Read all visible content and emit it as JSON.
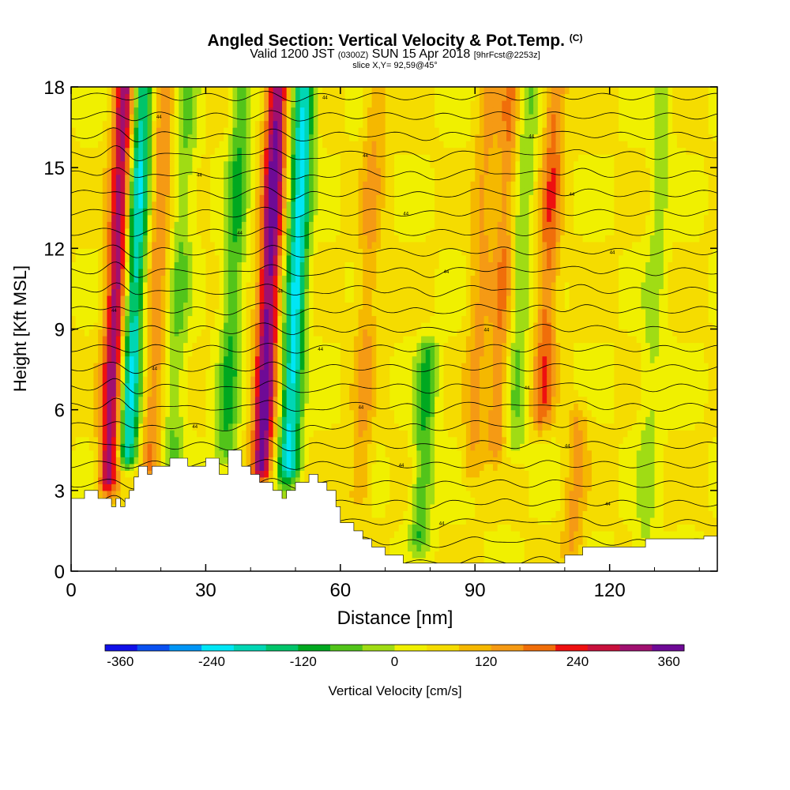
{
  "header": {
    "title": "Angled Section: Vertical Velocity & Pot.Temp.",
    "title_suffix": "(C)",
    "valid_prefix": "Valid 1200 JST",
    "valid_z": "(0300Z)",
    "valid_date": "SUN 15 Apr 2018",
    "valid_fcst": "[9hrFcst@2253z]",
    "slice": "slice X,Y= 92,59@45°"
  },
  "chart_data": {
    "type": "heatmap",
    "xlabel": "Distance [nm]",
    "ylabel": "Height [Kft MSL]",
    "xlim": [
      0,
      144
    ],
    "ylim": [
      0,
      18
    ],
    "x_ticks": [
      "0",
      "30",
      "60",
      "90",
      "120"
    ],
    "y_ticks": [
      "0",
      "3",
      "6",
      "9",
      "12",
      "15",
      "18"
    ],
    "colorbar": {
      "label": "Vertical Velocity [cm/s]",
      "tick_labels": [
        "-360",
        "-240",
        "-120",
        "0",
        "120",
        "240",
        "360"
      ],
      "tick_values": [
        -360,
        -240,
        -120,
        0,
        120,
        240,
        360
      ],
      "range": [
        -380,
        380
      ],
      "colors": [
        "#1010e8",
        "#0a50f0",
        "#0095f5",
        "#00e6f5",
        "#00d6b4",
        "#00c46a",
        "#00a820",
        "#52c41a",
        "#a0dc14",
        "#f0f000",
        "#f5dc00",
        "#f5b800",
        "#f59a14",
        "#f06e0a",
        "#ee1010",
        "#c8103c",
        "#a01070",
        "#6e0a96"
      ]
    },
    "vertical_velocity_features": [
      {
        "x": 10,
        "ymin": 3.5,
        "ymax": 18,
        "value": 280
      },
      {
        "x": 14,
        "ymin": 4.5,
        "ymax": 18,
        "value": -260
      },
      {
        "x": 19,
        "ymin": 4,
        "ymax": 18,
        "value": 120
      },
      {
        "x": 24,
        "ymin": 4,
        "ymax": 18,
        "value": -90
      },
      {
        "x": 36,
        "ymin": 4.5,
        "ymax": 18,
        "value": -130
      },
      {
        "x": 44,
        "ymin": 4,
        "ymax": 18,
        "value": 320
      },
      {
        "x": 50,
        "ymin": 4,
        "ymax": 18,
        "value": -270
      },
      {
        "x": 66,
        "ymin": 3,
        "ymax": 18,
        "value": 90
      },
      {
        "x": 80,
        "ymin": 1.5,
        "ymax": 8,
        "value": -130
      },
      {
        "x": 91,
        "ymin": 4,
        "ymax": 18,
        "value": 90
      },
      {
        "x": 96,
        "ymin": 5,
        "ymax": 18,
        "value": 120
      },
      {
        "x": 100,
        "ymin": 5,
        "ymax": 18,
        "value": -90
      },
      {
        "x": 106,
        "ymin": 6,
        "ymax": 18,
        "value": 150
      },
      {
        "x": 114,
        "ymin": 1,
        "ymax": 5.5,
        "value": 90
      },
      {
        "x": 130,
        "ymin": 1,
        "ymax": 18,
        "value": -60
      }
    ],
    "terrain": {
      "x": [
        0,
        3,
        3,
        6,
        6,
        9,
        9,
        10,
        10,
        11,
        11,
        12,
        12,
        13,
        13,
        14,
        14,
        15,
        15,
        17,
        17,
        18,
        18,
        22,
        22,
        26,
        26,
        30,
        30,
        33,
        33,
        35,
        35,
        38,
        38,
        40,
        40,
        42,
        42,
        45,
        45,
        47,
        47,
        48,
        48,
        50,
        50,
        53,
        53,
        55,
        55,
        57,
        57,
        59,
        59,
        60,
        60,
        63,
        63,
        65,
        65,
        67,
        67,
        70,
        70,
        74,
        74,
        80,
        80,
        90,
        90,
        110,
        110,
        114,
        114,
        128,
        128,
        141,
        141,
        144
      ],
      "h": [
        2.7,
        2.7,
        3.0,
        3.0,
        2.7,
        2.7,
        2.4,
        2.4,
        2.7,
        2.7,
        2.4,
        2.4,
        2.7,
        2.7,
        3.0,
        3.0,
        3.5,
        3.5,
        3.9,
        3.9,
        3.6,
        3.6,
        3.9,
        3.9,
        4.2,
        4.2,
        3.9,
        3.9,
        4.2,
        4.2,
        3.6,
        3.6,
        4.5,
        4.5,
        3.9,
        3.9,
        3.6,
        3.6,
        3.3,
        3.3,
        3.0,
        3.0,
        2.7,
        2.7,
        3.0,
        3.0,
        3.3,
        3.3,
        3.6,
        3.6,
        3.3,
        3.3,
        3.0,
        3.0,
        2.4,
        2.4,
        1.8,
        1.8,
        1.5,
        1.5,
        1.2,
        1.2,
        0.9,
        0.9,
        0.6,
        0.6,
        0.3,
        0.3,
        0.3,
        0.3,
        0.3,
        0.3,
        0.6,
        0.6,
        0.9,
        0.9,
        1.2,
        1.2,
        1.3,
        1.3
      ]
    },
    "contour_levels": 25,
    "contour_label": "44"
  }
}
